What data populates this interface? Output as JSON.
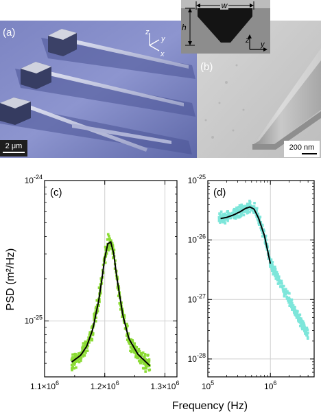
{
  "panels": {
    "a": {
      "label": "(a)",
      "scale_bar": "2 μm"
    },
    "b": {
      "label": "(b)",
      "scale_bar": "200 nm"
    },
    "inset": {
      "w_label": "w",
      "h_label": "h",
      "z_label": "z",
      "y_label": "y"
    },
    "axes_a": {
      "z": "z",
      "y": "y",
      "x": "x"
    }
  },
  "chart_data": [
    {
      "id": "c",
      "type": "scatter",
      "panel_label": "(c)",
      "xlabel": "Frequency (Hz)",
      "ylabel": "PSD (m²/Hz)",
      "x_scale": "linear",
      "y_scale": "log",
      "xlim": [
        1100000,
        1320000
      ],
      "ylim": [
        4e-26,
        1e-24
      ],
      "x_ticks": [
        1100000,
        1200000,
        1300000
      ],
      "x_tick_labels": [
        {
          "mant": "1.1×10",
          "exp": "6"
        },
        {
          "mant": "1.2×10",
          "exp": "6"
        },
        {
          "mant": "1.3×10",
          "exp": "6"
        }
      ],
      "y_ticks": [
        1e-25,
        1e-24
      ],
      "y_tick_labels": [
        {
          "mant": "10",
          "exp": "-25"
        },
        {
          "mant": "10",
          "exp": "-24"
        }
      ],
      "grid": true,
      "data_color": "#8bdb34",
      "fit_color": "#000000",
      "scatter_range": [
        1145000,
        1275000
      ],
      "fit": {
        "x": [
          1145000,
          1160000,
          1170000,
          1180000,
          1190000,
          1195000,
          1200000,
          1205000,
          1210000,
          1215000,
          1220000,
          1230000,
          1240000,
          1255000,
          1275000
        ],
        "y": [
          5.1e-26,
          5.7e-26,
          6.6e-26,
          8.7e-26,
          1.4e-25,
          1.95e-25,
          2.8e-25,
          3.55e-25,
          3.65e-25,
          3e-25,
          2.05e-25,
          1.1e-25,
          7.5e-26,
          5.8e-26,
          4.8e-26
        ]
      }
    },
    {
      "id": "d",
      "type": "scatter",
      "panel_label": "(d)",
      "xlabel": "Frequency (Hz)",
      "ylabel": "PSD (m²/Hz)",
      "x_scale": "log",
      "y_scale": "log",
      "xlim": [
        100000,
        5000000
      ],
      "ylim": [
        5e-29,
        1e-25
      ],
      "x_ticks": [
        100000,
        1000000
      ],
      "x_tick_labels": [
        {
          "mant": "10",
          "exp": "5"
        },
        {
          "mant": "10",
          "exp": "6"
        }
      ],
      "y_ticks": [
        1e-28,
        1e-27,
        1e-26,
        1e-25
      ],
      "y_tick_labels": [
        {
          "mant": "10",
          "exp": "-28"
        },
        {
          "mant": "10",
          "exp": "-27"
        },
        {
          "mant": "10",
          "exp": "-26"
        },
        {
          "mant": "10",
          "exp": "-25"
        }
      ],
      "grid": true,
      "data_color": "#7de6da",
      "fit_color": "#000000",
      "scatter_range": [
        150000,
        4000000
      ],
      "fit": {
        "x": [
          160000,
          200000,
          260000,
          330000,
          400000,
          470000,
          550000,
          650000,
          800000,
          1000000
        ],
        "y": [
          2.3e-26,
          2.4e-26,
          2.65e-26,
          3e-26,
          3.4e-26,
          3.6e-26,
          3.3e-26,
          2.3e-26,
          1.2e-26,
          4e-27
        ]
      }
    }
  ]
}
